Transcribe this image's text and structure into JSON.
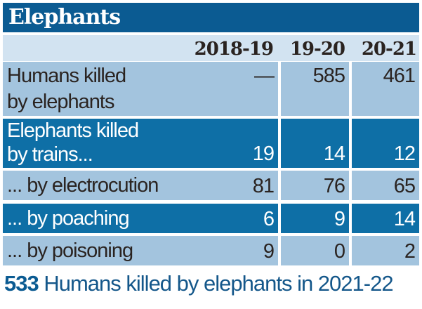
{
  "title": "Elephants",
  "columns": [
    "2018-19",
    "19-20",
    "20-21"
  ],
  "rows": [
    {
      "label_lines": [
        "Humans killed",
        "by elephants"
      ],
      "values": [
        "—",
        "585",
        "461"
      ]
    },
    {
      "label_lines": [
        "Elephants killed",
        "by trains..."
      ],
      "values": [
        "19",
        "14",
        "12"
      ]
    },
    {
      "label_lines": [
        "... by electrocution"
      ],
      "values": [
        "81",
        "76",
        "65"
      ]
    },
    {
      "label_lines": [
        "... by poaching"
      ],
      "values": [
        "6",
        "9",
        "14"
      ]
    },
    {
      "label_lines": [
        "... by poisoning"
      ],
      "values": [
        "9",
        "0",
        "2"
      ]
    }
  ],
  "footnote": {
    "number": "533",
    "text": "Humans killed by elephants in 2021-22"
  },
  "colors": {
    "title_bg": "#0b5b92",
    "dark_row": "#0e6fa6",
    "light_row": "#a3c4de",
    "header_row": "#d2e3f1"
  }
}
